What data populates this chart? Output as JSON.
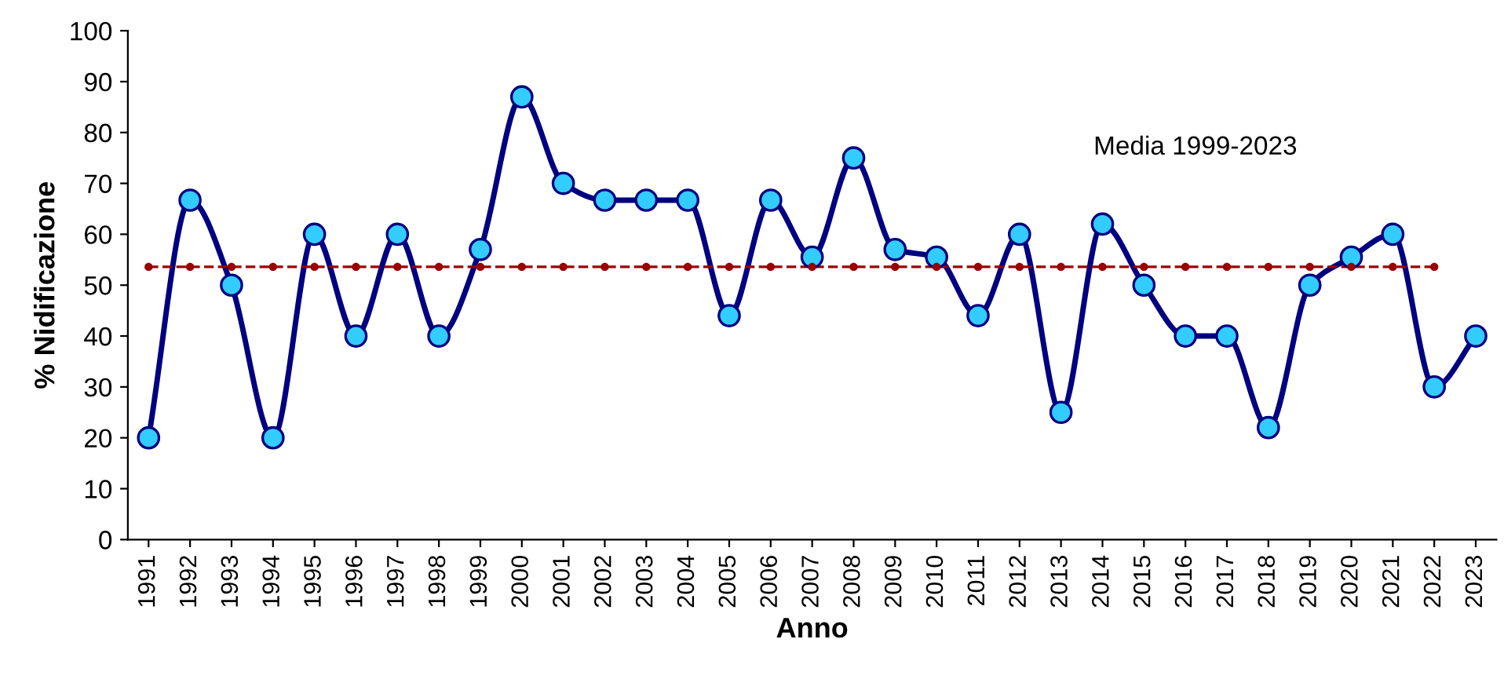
{
  "chart_data": {
    "type": "line",
    "xlabel": "Anno",
    "ylabel": "% Nidificazione",
    "categories": [
      "1991",
      "1992",
      "1993",
      "1994",
      "1995",
      "1996",
      "1997",
      "1998",
      "1999",
      "2000",
      "2001",
      "2002",
      "2003",
      "2004",
      "2005",
      "2006",
      "2007",
      "2008",
      "2009",
      "2010",
      "2011",
      "2012",
      "2013",
      "2014",
      "2015",
      "2016",
      "2017",
      "2018",
      "2019",
      "2020",
      "2021",
      "2022",
      "2023"
    ],
    "series": [
      {
        "color": "#000080",
        "colors": [
          "#33ccff",
          "#33ccff",
          "#33ccff",
          "#33ccff",
          "#33ccff",
          "#33ccff",
          "#33ccff",
          "#33ccff",
          "#33ccff",
          "#33ccff",
          "#33ccff",
          "#33ccff",
          "#33ccff",
          "#33ccff",
          "#33ccff",
          "#33ccff",
          "#33ccff",
          "#33ccff",
          "#33ccff",
          "#33ccff",
          "#33ccff",
          "#33ccff",
          "#33ccff",
          "#33ccff",
          "#33ccff",
          "#33ccff",
          "#33ccff",
          "#33ccff",
          "#33ccff",
          "#33ccff",
          "#33ccff",
          "#33ccff",
          "#33ccff"
        ],
        "marker": "circle",
        "line_style": "solid",
        "values": [
          20,
          66.7,
          50,
          20,
          60,
          40,
          60,
          40,
          57,
          87,
          70,
          66.7,
          66.7,
          66.7,
          44,
          66.7,
          55.5,
          75,
          57,
          55.5,
          44,
          60,
          25,
          62,
          50,
          40,
          40,
          22,
          50,
          55.5,
          60,
          30,
          40
        ]
      },
      {
        "color": "#990000",
        "marker": "circle",
        "line_style": "dashed",
        "values": [
          53.6,
          53.6,
          53.6,
          53.6,
          53.6,
          53.6,
          53.6,
          53.6,
          53.6,
          53.6,
          53.6,
          53.6,
          53.6,
          53.6,
          53.6,
          53.6,
          53.6,
          53.6,
          53.6,
          53.6,
          53.6,
          53.6,
          53.6,
          53.6,
          53.6,
          53.6,
          53.6,
          53.6,
          53.6,
          53.6,
          53.6,
          53.6,
          null
        ]
      }
    ],
    "annotations": [
      "Media 1999-2023"
    ],
    "ylim": [
      0,
      100
    ],
    "yticks": [
      0,
      10,
      20,
      30,
      40,
      50,
      60,
      70,
      80,
      90,
      100
    ],
    "grid": false,
    "legend": false
  }
}
